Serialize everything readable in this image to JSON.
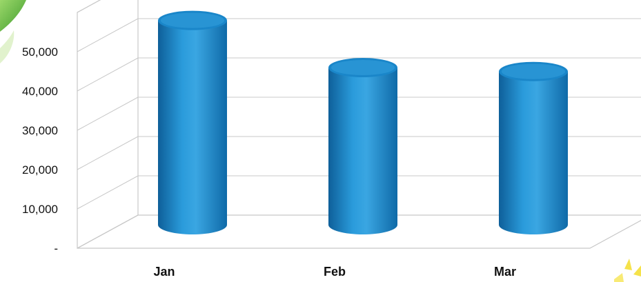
{
  "chart_data": {
    "type": "bar",
    "style": "3d-cylinder",
    "categories": [
      "Jan",
      "Feb",
      "Mar"
    ],
    "values": [
      52000,
      40000,
      39000
    ],
    "y_ticks": [
      "-",
      "10,000",
      "20,000",
      "30,000",
      "40,000",
      "50,000"
    ],
    "ylim": [
      0,
      60000
    ],
    "grid": true,
    "legend": "none",
    "colors": {
      "bar": "#1A86C9",
      "bar_light": "#3AA6E2",
      "bar_dark": "#0E5F99",
      "grid": "#C8C8C8"
    }
  },
  "decorations": {
    "left_leaf": "green-leaf-icon",
    "bottom_right_burst": "sun-burst-icon"
  }
}
